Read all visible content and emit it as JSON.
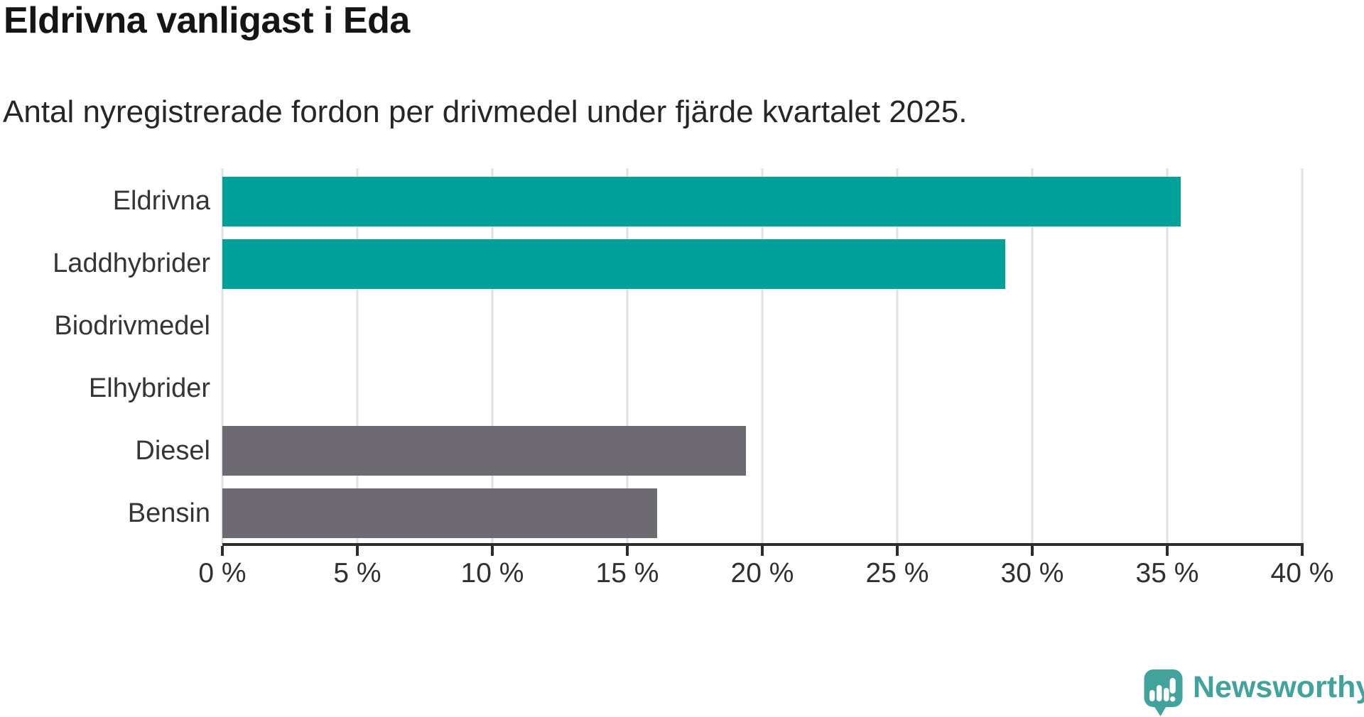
{
  "title": "Eldrivna vanligast i Eda",
  "subtitle": "Antal nyregistrerade fordon per drivmedel under fjärde kvartalet 2025.",
  "chart_data": {
    "type": "bar",
    "orientation": "horizontal",
    "title": "Eldrivna vanligast i Eda",
    "subtitle": "Antal nyregistrerade fordon per drivmedel under fjärde kvartalet 2025.",
    "categories": [
      "Eldrivna",
      "Laddhybrider",
      "Biodrivmedel",
      "Elhybrider",
      "Diesel",
      "Bensin"
    ],
    "values": [
      35.5,
      29,
      0,
      0,
      19.4,
      16.1
    ],
    "unit": "%",
    "xlim": [
      0,
      40
    ],
    "x_tick_values": [
      0,
      5,
      10,
      15,
      20,
      25,
      30,
      35,
      40
    ],
    "x_tick_labels": [
      "0 %",
      "5 %",
      "10 %",
      "15 %",
      "20 %",
      "25 %",
      "30 %",
      "35 %",
      "40 %"
    ],
    "grid": true,
    "gridline_color": "#e1e1e1",
    "axis_color": "#2d2d2d",
    "bar_colors": [
      "#00a199",
      "#00a199",
      "#00a199",
      "#00a199",
      "#6d6a72",
      "#6d6a72"
    ],
    "accent_color": "#00a199",
    "muted_color": "#6d6a72",
    "legend": null
  },
  "branding": {
    "logo_text": "Newsworthy",
    "logo_color": "#42a39d",
    "logo_icon": "newsworthy-speech-bubble-bar-chart-icon"
  }
}
